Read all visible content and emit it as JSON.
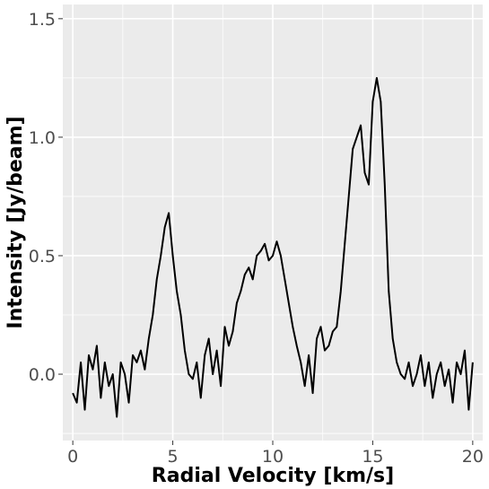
{
  "chart_data": {
    "type": "line",
    "xlabel": "Radial Velocity [km/s]",
    "ylabel": "Intensity [Jy/beam]",
    "xlim": [
      -0.5,
      20.5
    ],
    "ylim": [
      -0.28,
      1.56
    ],
    "x_ticks": [
      0,
      5,
      10,
      15,
      20
    ],
    "x_tick_labels": [
      "0",
      "5",
      "10",
      "15",
      "20"
    ],
    "y_ticks": [
      0.0,
      0.5,
      1.0,
      1.5
    ],
    "y_tick_labels": [
      "0.0",
      "0.5",
      "1.0",
      "1.5"
    ],
    "grid": true,
    "colors": {
      "panel": "#ebebeb",
      "grid": "#ffffff",
      "line": "#000000",
      "tick_text": "#4d4d4d"
    },
    "series": [
      {
        "x": [
          0.0,
          0.2,
          0.4,
          0.6,
          0.8,
          1.0,
          1.2,
          1.4,
          1.6,
          1.8,
          2.0,
          2.2,
          2.4,
          2.6,
          2.8,
          3.0,
          3.2,
          3.4,
          3.6,
          3.8,
          4.0,
          4.2,
          4.4,
          4.6,
          4.8,
          5.0,
          5.2,
          5.4,
          5.6,
          5.8,
          6.0,
          6.2,
          6.4,
          6.6,
          6.8,
          7.0,
          7.2,
          7.4,
          7.6,
          7.8,
          8.0,
          8.2,
          8.4,
          8.6,
          8.8,
          9.0,
          9.2,
          9.4,
          9.6,
          9.8,
          10.0,
          10.2,
          10.4,
          10.6,
          10.8,
          11.0,
          11.2,
          11.4,
          11.6,
          11.8,
          12.0,
          12.2,
          12.4,
          12.6,
          12.8,
          13.0,
          13.2,
          13.4,
          13.6,
          13.8,
          14.0,
          14.2,
          14.4,
          14.6,
          14.8,
          15.0,
          15.2,
          15.4,
          15.6,
          15.8,
          16.0,
          16.2,
          16.4,
          16.6,
          16.8,
          17.0,
          17.2,
          17.4,
          17.6,
          17.8,
          18.0,
          18.2,
          18.4,
          18.6,
          18.8,
          19.0,
          19.2,
          19.4,
          19.6,
          19.8,
          20.0
        ],
        "y": [
          -0.08,
          -0.12,
          0.05,
          -0.15,
          0.08,
          0.02,
          0.12,
          -0.1,
          0.05,
          -0.05,
          0.0,
          -0.18,
          0.05,
          0.0,
          -0.12,
          0.08,
          0.05,
          0.1,
          0.02,
          0.15,
          0.25,
          0.4,
          0.5,
          0.62,
          0.68,
          0.5,
          0.35,
          0.25,
          0.1,
          0.0,
          -0.02,
          0.05,
          -0.1,
          0.08,
          0.15,
          0.0,
          0.1,
          -0.05,
          0.2,
          0.12,
          0.18,
          0.3,
          0.35,
          0.42,
          0.45,
          0.4,
          0.5,
          0.52,
          0.55,
          0.48,
          0.5,
          0.56,
          0.5,
          0.4,
          0.3,
          0.2,
          0.12,
          0.05,
          -0.05,
          0.08,
          -0.08,
          0.15,
          0.2,
          0.1,
          0.12,
          0.18,
          0.2,
          0.35,
          0.55,
          0.75,
          0.95,
          1.0,
          1.05,
          0.85,
          0.8,
          1.15,
          1.25,
          1.15,
          0.8,
          0.35,
          0.15,
          0.05,
          0.0,
          -0.02,
          0.05,
          -0.05,
          0.0,
          0.08,
          -0.05,
          0.05,
          -0.1,
          0.0,
          0.05,
          -0.05,
          0.02,
          -0.12,
          0.05,
          0.0,
          0.1,
          -0.15,
          0.05
        ]
      }
    ]
  }
}
